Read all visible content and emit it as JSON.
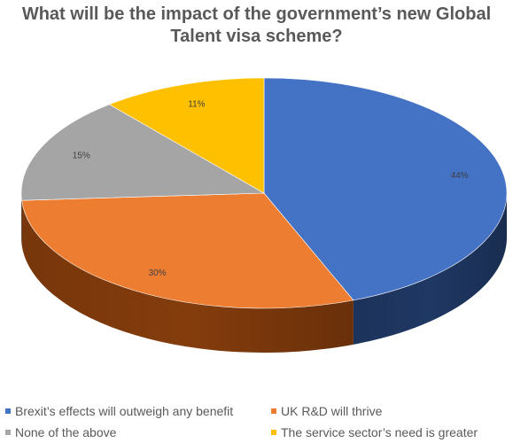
{
  "chart_data": {
    "type": "pie",
    "title_lines": [
      "What will be the impact of the government’s new Global",
      "Talent visa scheme?"
    ],
    "slices": [
      {
        "name": "Brexit’s effects will outweigh any benefit",
        "value": 44,
        "label": "44%",
        "color": "#4472C4",
        "side_color": "#1F3864"
      },
      {
        "name": "UK R&D will thrive",
        "value": 30,
        "label": "30%",
        "color": "#ED7D31",
        "side_color": "#843C0C"
      },
      {
        "name": "None of the above",
        "value": 15,
        "label": "15%",
        "color": "#A5A5A5",
        "side_color": "#595959"
      },
      {
        "name": "The service sector’s need is greater",
        "value": 11,
        "label": "11%",
        "color": "#FFC000",
        "side_color": "#7F6000"
      }
    ],
    "legend_position": "bottom"
  }
}
